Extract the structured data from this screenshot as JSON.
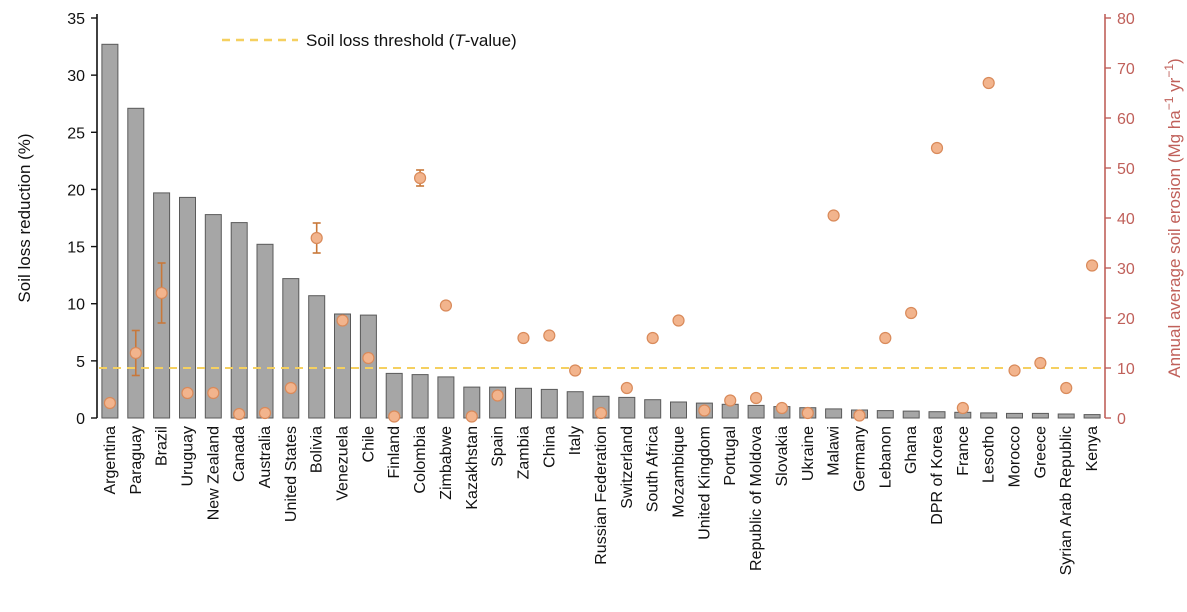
{
  "chart_data": {
    "type": "bar",
    "categories": [
      "Argentina",
      "Paraguay",
      "Brazil",
      "Uruguay",
      "New Zealand",
      "Canada",
      "Australia",
      "United States",
      "Bolivia",
      "Venezuela",
      "Chile",
      "Finland",
      "Colombia",
      "Zimbabwe",
      "Kazakhstan",
      "Spain",
      "Zambia",
      "China",
      "Italy",
      "Russian Federation",
      "Switzerland",
      "South Africa",
      "Mozambique",
      "United Kingdom",
      "Portugal",
      "Republic of Moldova",
      "Slovakia",
      "Ukraine",
      "Malawi",
      "Germany",
      "Lebanon",
      "Ghana",
      "DPR of Korea",
      "France",
      "Lesotho",
      "Morocco",
      "Greece",
      "Syrian Arab Republic",
      "Kenya"
    ],
    "series": [
      {
        "axis": "left",
        "kind": "bar",
        "values": [
          32.7,
          27.1,
          19.7,
          19.3,
          17.8,
          17.1,
          15.2,
          12.2,
          10.7,
          9.1,
          9.0,
          3.9,
          3.8,
          3.6,
          2.7,
          2.7,
          2.6,
          2.5,
          2.3,
          1.9,
          1.8,
          1.6,
          1.4,
          1.3,
          1.2,
          1.1,
          1.0,
          0.9,
          0.8,
          0.7,
          0.65,
          0.6,
          0.55,
          0.5,
          0.45,
          0.4,
          0.4,
          0.35,
          0.3
        ]
      },
      {
        "axis": "right",
        "kind": "scatter",
        "values": [
          3,
          13,
          25,
          5,
          5,
          0.8,
          1,
          6,
          36,
          19.5,
          12,
          0.3,
          48,
          22.5,
          0.3,
          4.5,
          16,
          16.5,
          9.5,
          1,
          6,
          16,
          19.5,
          1.5,
          3.5,
          4,
          2,
          1,
          40.5,
          0.5,
          16,
          21,
          54,
          2,
          67,
          9.5,
          11,
          6,
          30.5
        ],
        "errors": [
          0,
          4.5,
          6,
          0,
          0,
          0,
          0,
          0,
          3,
          0.8,
          0,
          0,
          1.6,
          0,
          0,
          0,
          0,
          0,
          0,
          0,
          0,
          0,
          0,
          0,
          0,
          0,
          0,
          0,
          0,
          0,
          0,
          0,
          0,
          0,
          0,
          0,
          0,
          0,
          0
        ]
      }
    ],
    "y_left": {
      "label": "Soil loss reduction (%)",
      "min": 0,
      "max": 35,
      "ticks": [
        0,
        5,
        10,
        15,
        20,
        25,
        30,
        35
      ]
    },
    "y_right": {
      "label_prefix": "Annual average soil erosion (Mg ha",
      "label_sup1": "−1",
      "label_mid": " yr",
      "label_sup2": "−1",
      "label_suffix": ")",
      "min": 0,
      "max": 80,
      "ticks": [
        0,
        10,
        20,
        30,
        40,
        50,
        60,
        70,
        80
      ]
    },
    "threshold": {
      "value": 10,
      "axis": "right"
    },
    "legend": {
      "position": "top-left",
      "label_prefix": "Soil loss threshold (",
      "label_italic": "T",
      "label_suffix": "-value)"
    },
    "colors": {
      "bar_fill": "#a6a6a6",
      "bar_stroke": "#5a5a5a",
      "marker_fill": "#f2b48d",
      "marker_stroke": "#d98a5a",
      "errorbar": "#c8783a",
      "threshold": "#f5d060",
      "right_axis": "#c0605a",
      "left_axis": "#111111"
    }
  }
}
